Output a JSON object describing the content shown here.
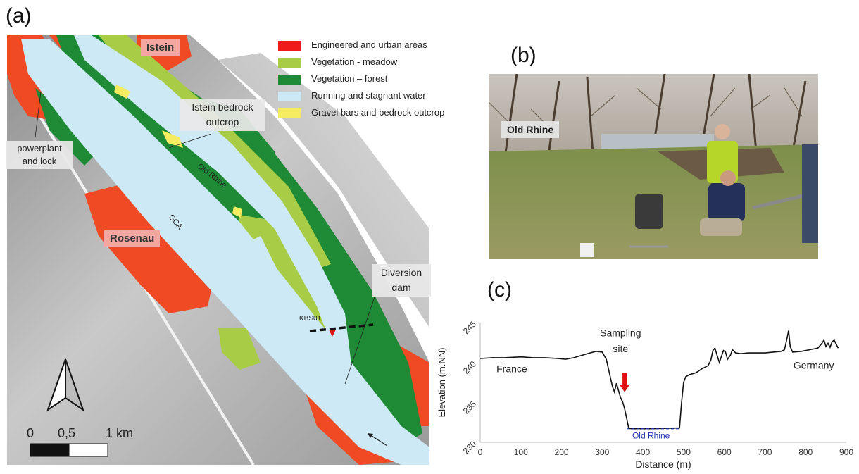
{
  "panels": {
    "a": "(a)",
    "b": "(b)",
    "c": "(c)"
  },
  "map": {
    "towns": {
      "istein": "Istein",
      "rosenau": "Rosenau"
    },
    "boxes": {
      "bedrock": "Istein bedrock outcrop",
      "powerplant": "powerplant and lock",
      "dam": "Diversion dam"
    },
    "channel_labels": {
      "old_rhine": "Old Rhine",
      "gca": "GCA",
      "site": "KBS01"
    },
    "legend": [
      {
        "label": "Engineered and urban areas",
        "color": "#f01a1a"
      },
      {
        "label": "Vegetation - meadow",
        "color": "#a8cc45"
      },
      {
        "label": "Vegetation – forest",
        "color": "#1e8a35"
      },
      {
        "label": "Running and stagnant water",
        "color": "#cde9f5"
      },
      {
        "label": "Gravel bars and bedrock outcrop",
        "color": "#f5ec62"
      }
    ],
    "scale": {
      "zero": "0",
      "half": "0,5",
      "one": "1 km"
    },
    "colors": {
      "urban": "#ef4a23",
      "meadow": "#a8cc45",
      "forest": "#1e8a35",
      "water": "#cde9f5",
      "gravel": "#f5ec62"
    }
  },
  "photo": {
    "tag": "Old Rhine"
  },
  "chart_data": {
    "type": "line",
    "xlabel": "Distance (m)",
    "ylabel": "Elevation (m.NN)",
    "xlim": [
      0,
      900
    ],
    "ylim": [
      230,
      245
    ],
    "xticks": [
      0,
      100,
      200,
      300,
      400,
      500,
      600,
      700,
      800,
      900
    ],
    "yticks": [
      230,
      235,
      240,
      245
    ],
    "annotations": {
      "france": "France",
      "germany": "Germany",
      "sampling": [
        "Sampling",
        "site"
      ],
      "river": "Old Rhine"
    },
    "water_level": {
      "x": [
        360,
        490
      ],
      "y": 231.7,
      "color": "#2233aa"
    },
    "arrow": {
      "x": 355,
      "y_top": 238.7,
      "y_bottom": 236.3,
      "color": "#e01010"
    },
    "series": [
      {
        "values": [
          [
            0,
            240.5
          ],
          [
            30,
            240.6
          ],
          [
            60,
            240.6
          ],
          [
            100,
            240.7
          ],
          [
            130,
            240.6
          ],
          [
            160,
            240.6
          ],
          [
            190,
            240.5
          ],
          [
            210,
            240.4
          ],
          [
            230,
            240.6
          ],
          [
            250,
            240.9
          ],
          [
            270,
            241.2
          ],
          [
            285,
            241.4
          ],
          [
            300,
            241.3
          ],
          [
            310,
            240.4
          ],
          [
            318,
            238.6
          ],
          [
            325,
            237.0
          ],
          [
            330,
            236.3
          ],
          [
            335,
            237.4
          ],
          [
            340,
            236.5
          ],
          [
            345,
            235.6
          ],
          [
            350,
            235.1
          ],
          [
            355,
            234.2
          ],
          [
            360,
            233.0
          ],
          [
            365,
            231.8
          ],
          [
            370,
            231.7
          ],
          [
            420,
            231.7
          ],
          [
            490,
            231.8
          ],
          [
            495,
            235.0
          ],
          [
            500,
            237.5
          ],
          [
            505,
            238.2
          ],
          [
            515,
            238.5
          ],
          [
            530,
            238.7
          ],
          [
            545,
            239.2
          ],
          [
            560,
            239.6
          ],
          [
            567,
            240.3
          ],
          [
            572,
            241.5
          ],
          [
            577,
            241.8
          ],
          [
            583,
            240.8
          ],
          [
            588,
            240.0
          ],
          [
            592,
            240.6
          ],
          [
            598,
            241.5
          ],
          [
            603,
            241.3
          ],
          [
            608,
            240.4
          ],
          [
            615,
            240.9
          ],
          [
            620,
            241.6
          ],
          [
            628,
            241.2
          ],
          [
            640,
            241.1
          ],
          [
            660,
            241.2
          ],
          [
            700,
            241.2
          ],
          [
            740,
            241.4
          ],
          [
            748,
            241.6
          ],
          [
            755,
            243.2
          ],
          [
            758,
            244.0
          ],
          [
            762,
            242.0
          ],
          [
            768,
            241.3
          ],
          [
            790,
            241.4
          ],
          [
            810,
            241.6
          ],
          [
            830,
            241.8
          ],
          [
            840,
            242.4
          ],
          [
            845,
            242.8
          ],
          [
            850,
            242.0
          ],
          [
            855,
            242.4
          ],
          [
            860,
            241.9
          ],
          [
            865,
            242.6
          ],
          [
            870,
            242.8
          ],
          [
            880,
            241.8
          ]
        ]
      }
    ]
  }
}
